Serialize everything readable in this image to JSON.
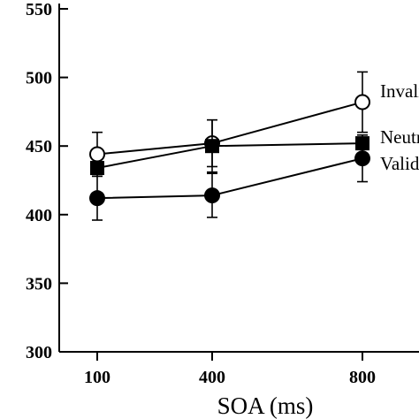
{
  "chart_data": {
    "type": "line",
    "xlabel": "SOA (ms)",
    "ylabel": "",
    "categories": [
      "100",
      "400",
      "800"
    ],
    "ylim": [
      300,
      550
    ],
    "yticks": [
      300,
      350,
      400,
      450,
      500,
      550
    ],
    "grid": false,
    "legend": "inline-right",
    "series": [
      {
        "name": "Invalid",
        "marker": "open-circle",
        "values": [
          444,
          452,
          482
        ],
        "error": [
          16,
          17,
          22
        ]
      },
      {
        "name": "Neutral",
        "marker": "filled-square",
        "values": [
          434,
          450,
          452
        ],
        "error": [
          0,
          19,
          0
        ]
      },
      {
        "name": "Valid",
        "marker": "filled-circle",
        "values": [
          412,
          414,
          441
        ],
        "error": [
          16,
          16,
          17
        ]
      }
    ]
  }
}
